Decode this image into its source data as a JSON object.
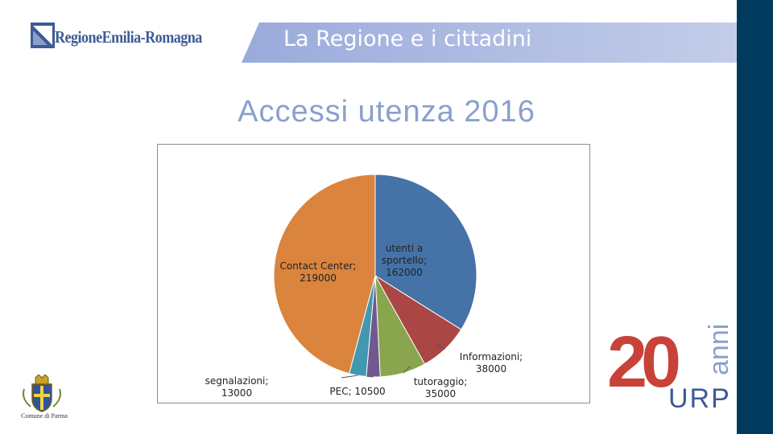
{
  "header": {
    "brand": "RegioneEmilia-Romagna",
    "title": "La Regione e i cittadini"
  },
  "page_title": "Accessi utenza 2016",
  "chart_data": {
    "type": "pie",
    "title": "",
    "slices": [
      {
        "name": "utenti a sportello",
        "value": 162000,
        "color": "#4572a7",
        "label_lines": [
          "utenti a",
          "sportello;",
          "162000"
        ]
      },
      {
        "name": "Informazioni",
        "value": 38000,
        "color": "#aa4643",
        "label_lines": [
          "Informazioni;",
          "38000"
        ]
      },
      {
        "name": "tutoraggio",
        "value": 35000,
        "color": "#89a54e",
        "label_lines": [
          "tutoraggio;",
          "35000"
        ]
      },
      {
        "name": "PEC",
        "value": 10500,
        "color": "#71588f",
        "label_lines": [
          "PEC; 10500"
        ]
      },
      {
        "name": "segnalazioni",
        "value": 13000,
        "color": "#4198af",
        "label_lines": [
          "segnalazioni;",
          "13000"
        ]
      },
      {
        "name": "Contact Center",
        "value": 219000,
        "color": "#db843d",
        "label_lines": [
          "Contact Center;",
          "219000"
        ]
      }
    ]
  },
  "footer": {
    "parma_name": "Comune di Parma",
    "anniversary_number": "20",
    "anniversary_word": "anni",
    "anniversary_brand": "URP"
  }
}
